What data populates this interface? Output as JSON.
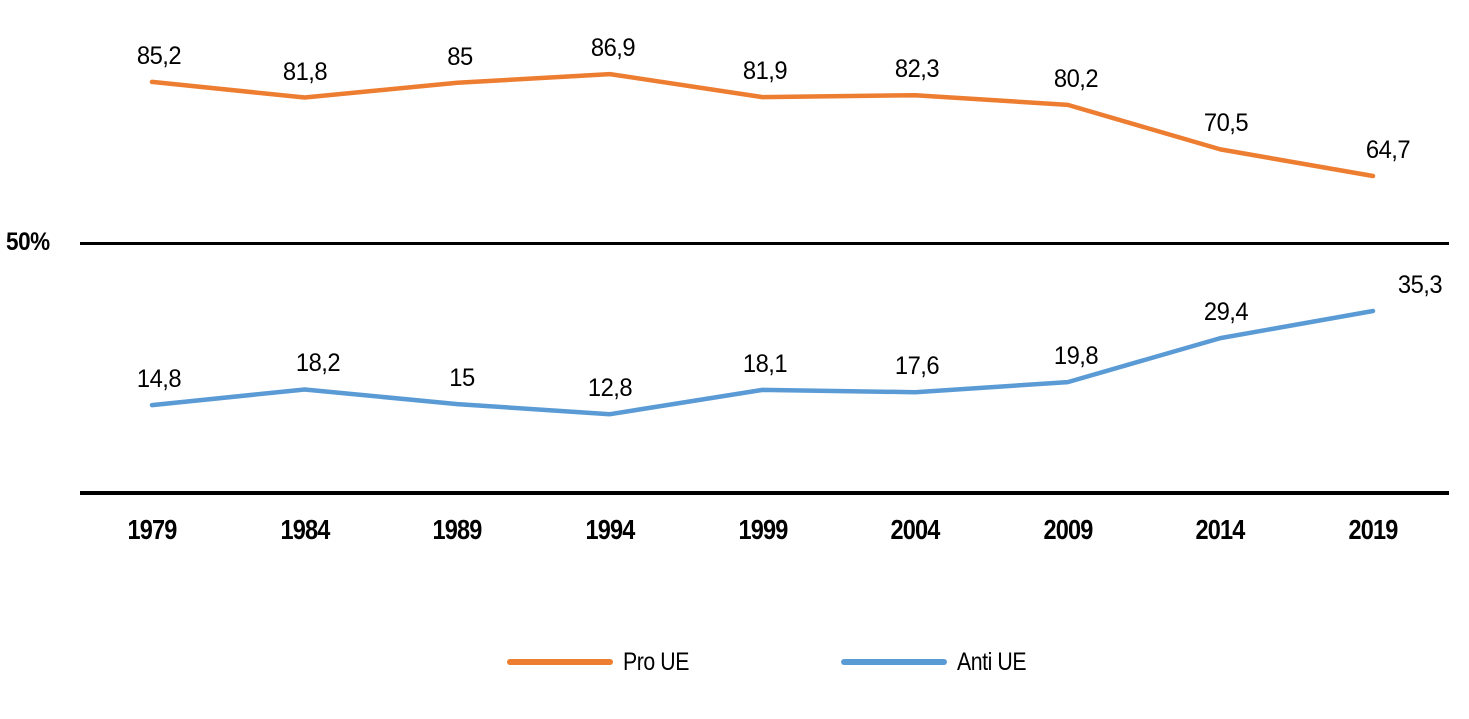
{
  "chart_data": {
    "type": "line",
    "title": "",
    "xlabel": "",
    "ylabel": "",
    "x": [
      "1979",
      "1984",
      "1989",
      "1994",
      "1999",
      "2004",
      "2009",
      "2014",
      "2019"
    ],
    "series": [
      {
        "name": "Pro UE",
        "color": "#ED7D31",
        "values": [
          85.2,
          81.8,
          85,
          86.9,
          81.9,
          82.3,
          80.2,
          70.5,
          64.7
        ]
      },
      {
        "name": "Anti UE",
        "color": "#5B9BD5",
        "values": [
          14.8,
          18.2,
          15,
          12.8,
          18.1,
          17.6,
          19.8,
          29.4,
          35.3
        ]
      }
    ],
    "reference_line": {
      "value": 50,
      "label": "50%"
    },
    "ylim": [
      0,
      100
    ],
    "grid": false,
    "legend_position": "bottom",
    "decimal_separator": ",",
    "data_labels_shown": true,
    "axis_color": "#000000",
    "background_color": "#FFFFFF"
  }
}
